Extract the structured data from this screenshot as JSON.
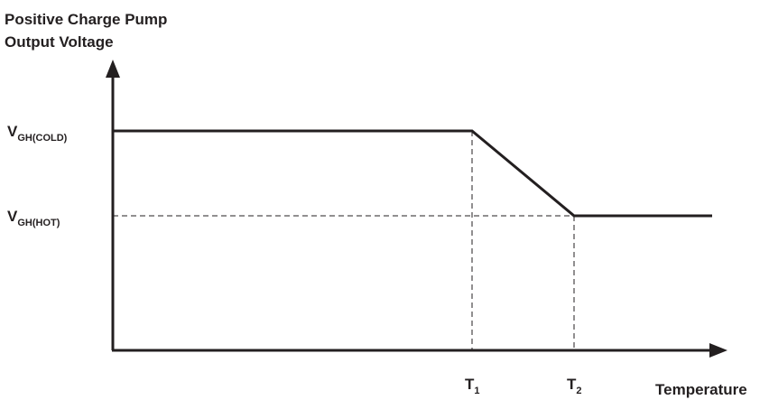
{
  "chart_data": {
    "type": "line",
    "title_line1": "Positive Charge Pump",
    "title_line2": "Output Voltage",
    "xlabel": "Temperature",
    "ylabel": "",
    "x_ticks": [
      {
        "main": "T",
        "sub": "1",
        "x": 1
      },
      {
        "main": "T",
        "sub": "2",
        "x": 2
      }
    ],
    "y_ticks": [
      {
        "main": "V",
        "sub": "GH(COLD)",
        "y": 1
      },
      {
        "main": "V",
        "sub": "GH(HOT)",
        "y": 0
      }
    ],
    "series": [
      {
        "values": [
          {
            "x": 0,
            "y": 1
          },
          {
            "x": 1,
            "y": 1
          },
          {
            "x": 2,
            "y": 0
          },
          {
            "x": 3.4,
            "y": 0
          }
        ]
      }
    ],
    "reference_lines": true,
    "grid": false,
    "line_color": "#231f20"
  }
}
